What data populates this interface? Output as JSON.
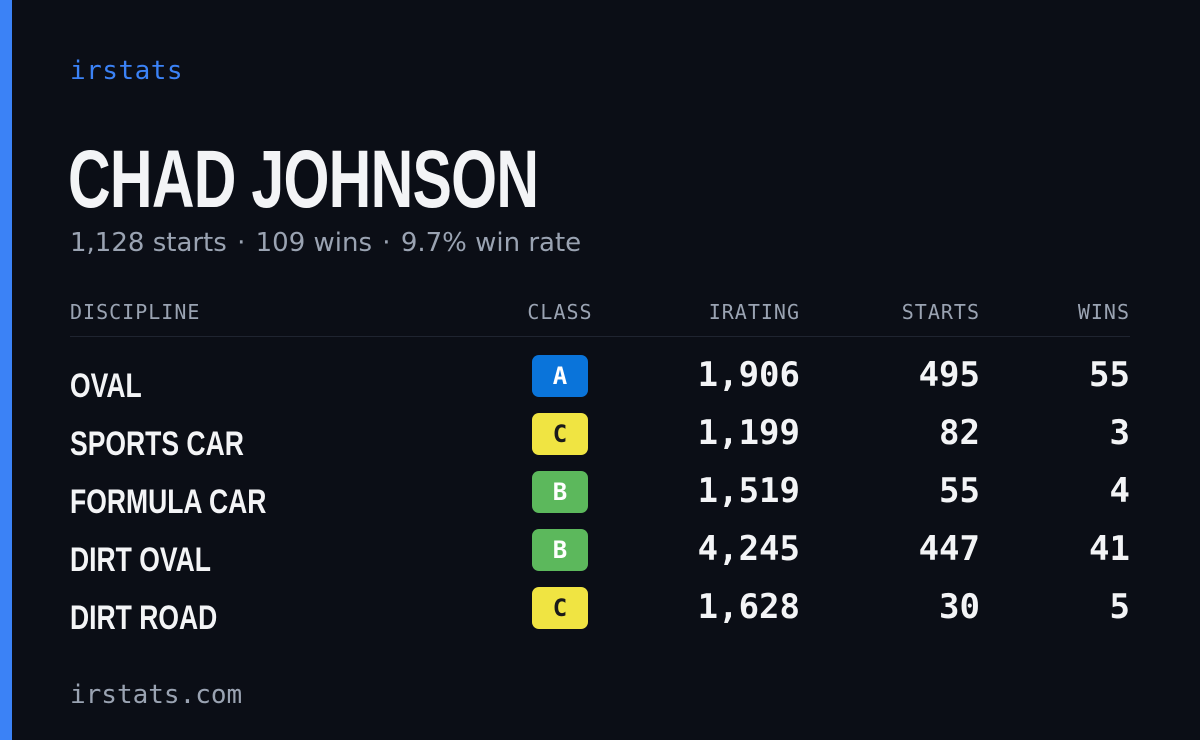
{
  "brand": "irstats",
  "player": {
    "name": "CHAD JOHNSON",
    "starts_text": "1,128 starts",
    "wins_text": "109 wins",
    "win_rate_text": "9.7% win rate",
    "separator": "·"
  },
  "table": {
    "headers": {
      "discipline": "DISCIPLINE",
      "class": "CLASS",
      "irating": "IRATING",
      "starts": "STARTS",
      "wins": "WINS"
    },
    "rows": [
      {
        "discipline": "OVAL",
        "class": "A",
        "irating": "1,906",
        "starts": "495",
        "wins": "55"
      },
      {
        "discipline": "SPORTS CAR",
        "class": "C",
        "irating": "1,199",
        "starts": "82",
        "wins": "3"
      },
      {
        "discipline": "FORMULA CAR",
        "class": "B",
        "irating": "1,519",
        "starts": "55",
        "wins": "4"
      },
      {
        "discipline": "DIRT OVAL",
        "class": "B",
        "irating": "4,245",
        "starts": "447",
        "wins": "41"
      },
      {
        "discipline": "DIRT ROAD",
        "class": "C",
        "irating": "1,628",
        "starts": "30",
        "wins": "5"
      }
    ]
  },
  "class_colors": {
    "A": {
      "bg": "#0a74da",
      "fg": "#ffffff"
    },
    "B": {
      "bg": "#5cb85c",
      "fg": "#ffffff"
    },
    "C": {
      "bg": "#f0e442",
      "fg": "#1a1a1a"
    }
  },
  "colors": {
    "background": "#0b0e16",
    "accent": "#3b82f6",
    "text": "#f3f4f6",
    "muted": "#9aa3b2"
  },
  "footer": "irstats.com"
}
